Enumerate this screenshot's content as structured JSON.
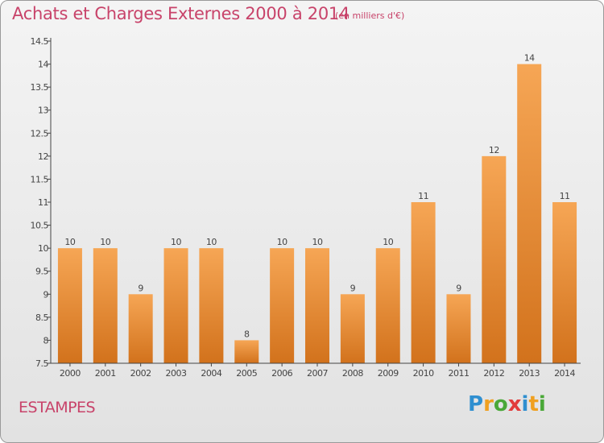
{
  "header": {
    "title": "Achats et Charges Externes 2000 à 2014",
    "subtitle": "(en milliers d'€)"
  },
  "commune": "ESTAMPES",
  "logo": {
    "text": "Proxiti",
    "letters": [
      {
        "ch": "P",
        "color": "#2f8fd0"
      },
      {
        "ch": "r",
        "color": "#f0a020"
      },
      {
        "ch": "o",
        "color": "#4aa838"
      },
      {
        "ch": "x",
        "color": "#e23c3c"
      },
      {
        "ch": "i",
        "color": "#2f8fd0"
      },
      {
        "ch": "t",
        "color": "#f0a020"
      },
      {
        "ch": "i",
        "color": "#4aa838"
      }
    ]
  },
  "colors": {
    "bar_top": "#f6a655",
    "bar_bottom": "#d2721c",
    "text_accent": "#c8436a"
  },
  "chart_data": {
    "type": "bar",
    "title": "Achats et Charges Externes 2000 à 2014",
    "subtitle": "(en milliers d'€)",
    "categories": [
      "2000",
      "2001",
      "2002",
      "2003",
      "2004",
      "2005",
      "2006",
      "2007",
      "2008",
      "2009",
      "2010",
      "2011",
      "2012",
      "2013",
      "2014"
    ],
    "values": [
      10,
      10,
      9,
      10,
      10,
      8,
      10,
      10,
      9,
      10,
      11,
      9,
      12,
      14,
      11
    ],
    "value_labels": [
      "10",
      "10",
      "9",
      "10",
      "10",
      "8",
      "10",
      "10",
      "9",
      "10",
      "11",
      "9",
      "12",
      "14",
      "11"
    ],
    "ylim": [
      7.5,
      14.5
    ],
    "yticks": [
      7.5,
      8,
      8.5,
      9,
      9.5,
      10,
      10.5,
      11,
      11.5,
      12,
      12.5,
      13,
      13.5,
      14,
      14.5
    ],
    "ytick_labels": [
      "7.5",
      "8",
      "8.5",
      "9",
      "9.5",
      "10",
      "10.5",
      "11",
      "11.5",
      "12",
      "12.5",
      "13",
      "13.5",
      "14",
      "14.5"
    ],
    "xlabel": "",
    "ylabel": "",
    "grid": false,
    "legend": "none"
  }
}
